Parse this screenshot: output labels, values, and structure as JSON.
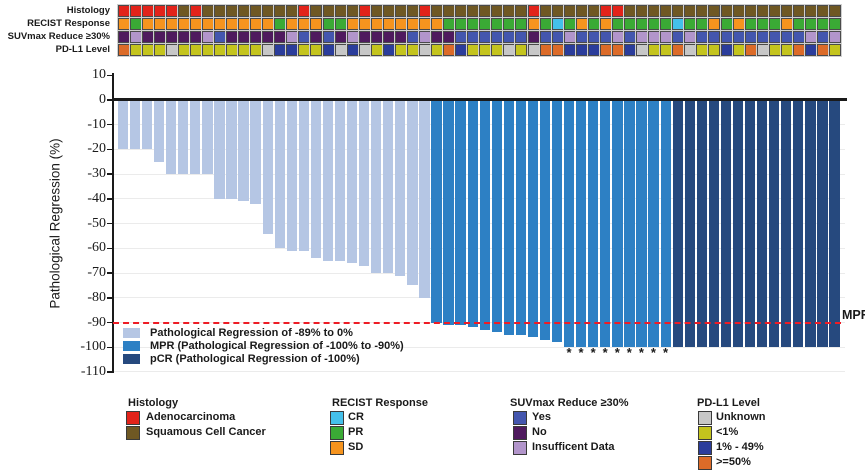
{
  "tracks": {
    "labels": [
      "Histology",
      "RECIST Response",
      "SUVmax Reduce ≥30%",
      "PD-L1 Level"
    ],
    "keys": [
      "histology",
      "recist",
      "suvmax",
      "pdl1"
    ],
    "values": {
      "histology": [
        "A",
        "A",
        "A",
        "A",
        "A",
        "S",
        "A",
        "S",
        "S",
        "S",
        "S",
        "S",
        "S",
        "S",
        "S",
        "A",
        "S",
        "S",
        "S",
        "S",
        "A",
        "S",
        "S",
        "S",
        "S",
        "A",
        "S",
        "S",
        "S",
        "S",
        "S",
        "S",
        "S",
        "S",
        "A",
        "S",
        "S",
        "S",
        "S",
        "S",
        "A",
        "A",
        "S",
        "S",
        "S",
        "S",
        "S",
        "S",
        "S",
        "S",
        "S",
        "S",
        "S",
        "S",
        "S",
        "S",
        "S",
        "S",
        "S",
        "S"
      ],
      "recist": [
        "SD",
        "PR",
        "SD",
        "SD",
        "SD",
        "SD",
        "SD",
        "SD",
        "SD",
        "SD",
        "SD",
        "SD",
        "SD",
        "PR",
        "SD",
        "SD",
        "SD",
        "PR",
        "PR",
        "SD",
        "SD",
        "SD",
        "SD",
        "SD",
        "SD",
        "SD",
        "SD",
        "PR",
        "PR",
        "PR",
        "PR",
        "PR",
        "PR",
        "PR",
        "SD",
        "PR",
        "CR",
        "PR",
        "SD",
        "PR",
        "SD",
        "PR",
        "PR",
        "PR",
        "PR",
        "PR",
        "CR",
        "PR",
        "PR",
        "SD",
        "PR",
        "SD",
        "PR",
        "PR",
        "PR",
        "SD",
        "PR",
        "PR",
        "PR",
        "PR"
      ],
      "suvmax": [
        "N",
        "I",
        "N",
        "N",
        "N",
        "N",
        "N",
        "I",
        "Y",
        "N",
        "N",
        "N",
        "N",
        "N",
        "I",
        "Y",
        "N",
        "Y",
        "N",
        "I",
        "N",
        "N",
        "N",
        "N",
        "Y",
        "I",
        "N",
        "N",
        "Y",
        "Y",
        "Y",
        "Y",
        "Y",
        "Y",
        "N",
        "Y",
        "Y",
        "I",
        "Y",
        "Y",
        "Y",
        "I",
        "Y",
        "I",
        "I",
        "I",
        "Y",
        "I",
        "Y",
        "Y",
        "Y",
        "Y",
        "Y",
        "Y",
        "Y",
        "Y",
        "Y",
        "I",
        "Y",
        "I"
      ],
      "pdl1": [
        "H",
        "L",
        "L",
        "L",
        "U",
        "L",
        "L",
        "L",
        "L",
        "L",
        "L",
        "L",
        "U",
        "M",
        "M",
        "L",
        "L",
        "M",
        "U",
        "M",
        "U",
        "L",
        "M",
        "L",
        "L",
        "U",
        "L",
        "H",
        "M",
        "L",
        "L",
        "L",
        "U",
        "L",
        "U",
        "H",
        "H",
        "M",
        "M",
        "M",
        "H",
        "H",
        "M",
        "U",
        "L",
        "L",
        "H",
        "U",
        "L",
        "L",
        "M",
        "L",
        "H",
        "U",
        "L",
        "L",
        "H",
        "M",
        "H",
        "L"
      ]
    }
  },
  "chart_data": {
    "type": "bar",
    "subtype": "waterfall",
    "title": "",
    "xlabel": "",
    "ylabel": "Pathological Regression (%)",
    "ylim": [
      -110,
      10
    ],
    "yticks": [
      10,
      0,
      -10,
      -20,
      -30,
      -40,
      -50,
      -60,
      -70,
      -80,
      -90,
      -100,
      -110
    ],
    "grid": "horizontal-light",
    "n_patients": 60,
    "values": [
      -20,
      -20,
      -20,
      -25,
      -30,
      -30,
      -30,
      -30,
      -40,
      -40,
      -41,
      -42,
      -54,
      -60,
      -61,
      -61,
      -64,
      -65,
      -65,
      -66,
      -67,
      -70,
      -70,
      -71,
      -75,
      -80,
      -90,
      -91,
      -91,
      -92,
      -93,
      -94,
      -95,
      -95,
      -96,
      -97,
      -98,
      -100,
      -100,
      -100,
      -100,
      -100,
      -100,
      -100,
      -100,
      -100,
      -100,
      -100,
      -100,
      -100,
      -100,
      -100,
      -100,
      -100,
      -100,
      -100,
      -100,
      -100,
      -100,
      -100
    ],
    "group_ranges": {
      "reg": [
        1,
        26
      ],
      "mpr": [
        27,
        46
      ],
      "pcr": [
        47,
        60
      ]
    },
    "asterisk_patients": [
      38,
      39,
      40,
      41,
      42,
      43,
      44,
      45,
      46
    ],
    "asterisk_glyph": "*",
    "reference_line": {
      "value": -90,
      "label": "MPR",
      "color": "#ee1c25",
      "style": "dashed"
    },
    "legend_position": "bottom-left-inside",
    "legend": [
      {
        "key": "reg",
        "label": "Pathological Regression of -89% to 0%",
        "color": "#b5c6e4"
      },
      {
        "key": "mpr",
        "label": "MPR (Pathological Regression of -100% to -90%)",
        "color": "#2d80c4"
      },
      {
        "key": "pcr",
        "label": "pCR (Pathological Regression of -100%)",
        "color": "#26497e"
      }
    ]
  },
  "bottom_legends": [
    {
      "title": "Histology",
      "items": [
        {
          "label": "Adenocarcinoma",
          "color": "#e2231a"
        },
        {
          "label": "Squamous Cell Cancer",
          "color": "#6f5823"
        }
      ]
    },
    {
      "title": "RECIST Response",
      "items": [
        {
          "label": "CR",
          "color": "#44c0ea"
        },
        {
          "label": "PR",
          "color": "#3aaa35"
        },
        {
          "label": "SD",
          "color": "#f6941e"
        }
      ]
    },
    {
      "title": "SUVmax Reduce ≥30%",
      "items": [
        {
          "label": "Yes",
          "color": "#4456ae"
        },
        {
          "label": "No",
          "color": "#4f1a5e"
        },
        {
          "label": "Insufficent Data",
          "color": "#b295cb"
        }
      ]
    },
    {
      "title": "PD-L1 Level",
      "items": [
        {
          "label": "Unknown",
          "color": "#c7c7c7"
        },
        {
          "label": "<1%",
          "color": "#c4c41d"
        },
        {
          "label": "1% - 49%",
          "color": "#2b3d9b"
        },
        {
          "label": ">=50%",
          "color": "#dc6b28"
        }
      ]
    }
  ],
  "colors": {
    "bar_reg": "#b5c6e4",
    "bar_mpr": "#2d80c4",
    "bar_pcr": "#26497e",
    "histology": {
      "A": "#e2231a",
      "S": "#6f5823"
    },
    "recist": {
      "CR": "#44c0ea",
      "PR": "#3aaa35",
      "SD": "#f6941e"
    },
    "suvmax": {
      "Y": "#4456ae",
      "N": "#4f1a5e",
      "I": "#b295cb"
    },
    "pdl1": {
      "U": "#c7c7c7",
      "L": "#c4c41d",
      "M": "#2b3d9b",
      "H": "#dc6b28"
    },
    "reference": "#ee1c25",
    "axis": "#1a1a1a",
    "grid": "#ebebeb"
  }
}
